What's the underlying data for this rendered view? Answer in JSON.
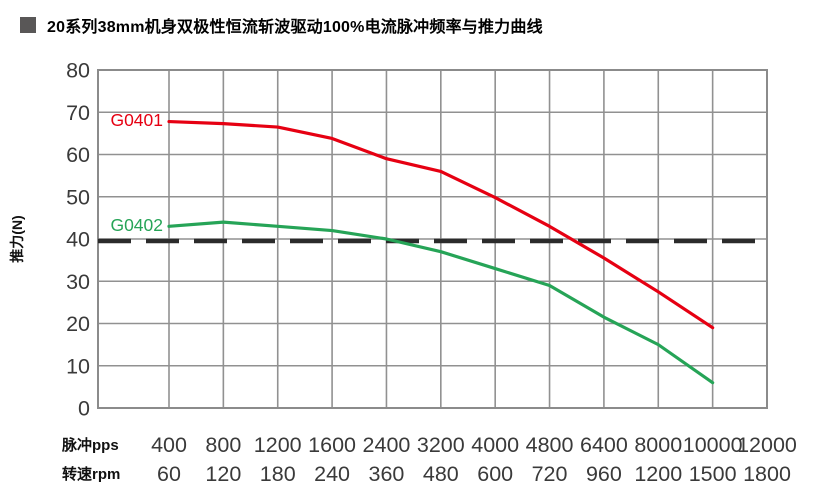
{
  "title": "20系列38mm机身双极性恒流斩波驱动100%电流脉冲频率与推力曲线",
  "y_axis": {
    "label": "推力(N)",
    "ticks": [
      80,
      70,
      60,
      50,
      40,
      30,
      20,
      10,
      0
    ]
  },
  "x_axis": {
    "row1_label": "脉冲pps",
    "row2_label": "转速rpm",
    "row1_ticks": [
      "400",
      "800",
      "1200",
      "1600",
      "2400",
      "3200",
      "4000",
      "4800",
      "6400",
      "8000",
      "10000",
      "12000"
    ],
    "row2_ticks": [
      "60",
      "120",
      "180",
      "240",
      "360",
      "480",
      "600",
      "720",
      "960",
      "1200",
      "1500",
      "1800"
    ]
  },
  "chart_data": {
    "type": "line",
    "title": "20系列38mm机身双极性恒流斩波驱动100%电流脉冲频率与推力曲线",
    "xlabel_row1": "脉冲pps",
    "xlabel_row2": "转速rpm",
    "ylabel": "推力(N)",
    "x_ticks_pps": [
      400,
      800,
      1200,
      1600,
      2400,
      3200,
      4000,
      4800,
      6400,
      8000,
      10000,
      12000
    ],
    "x_ticks_rpm": [
      60,
      120,
      180,
      240,
      360,
      480,
      600,
      720,
      960,
      1200,
      1500,
      1800
    ],
    "series": [
      {
        "name": "G0401",
        "color": "#e60012",
        "x_pps": [
          400,
          800,
          1200,
          1600,
          2400,
          3200,
          4000,
          4800,
          6400,
          8000,
          10000
        ],
        "values": [
          67.8,
          67.3,
          66.5,
          63.8,
          59,
          56,
          49.8,
          43,
          35.5,
          27.5,
          19
        ]
      },
      {
        "name": "G0402",
        "color": "#26a457",
        "x_pps": [
          400,
          800,
          1200,
          1600,
          2400,
          3200,
          4000,
          4800,
          6400,
          8000,
          10000
        ],
        "values": [
          43,
          44,
          43,
          42,
          40,
          37,
          33,
          29,
          21.5,
          15,
          6
        ]
      }
    ],
    "threshold_line": {
      "value": 40,
      "style": "dashed",
      "color": "#2b2b2b"
    },
    "ylim": [
      0,
      80
    ],
    "grid": true,
    "legend_position": "inline-left-of-curves"
  },
  "colors": {
    "grid": "#919191",
    "plot_border": "#8b8b8b",
    "tick_text": "#3a3a3a",
    "title_bullet": "#595757",
    "series_red": "#e60012",
    "series_green": "#26a457",
    "dashed_line": "#2b2b2b"
  }
}
